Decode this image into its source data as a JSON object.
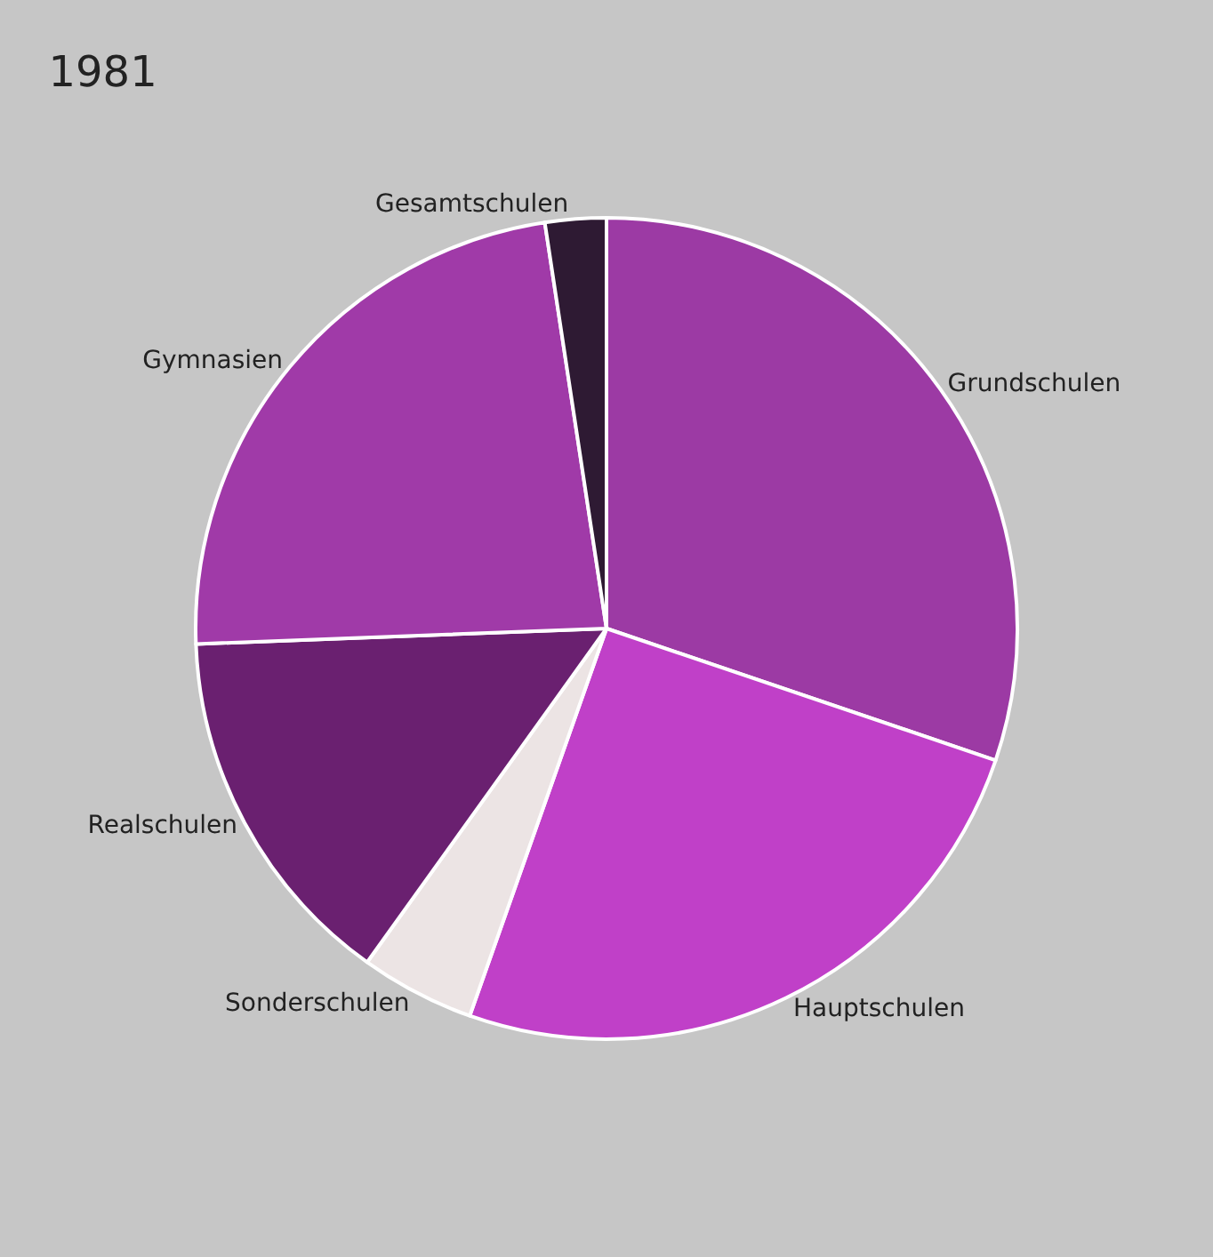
{
  "chart_data": {
    "type": "pie",
    "title": "1981",
    "categories": [
      "Grundschulen",
      "Hauptschulen",
      "Sonderschulen",
      "Realschulen",
      "Gymnasien",
      "Gesamtschulen"
    ],
    "values": [
      30.2,
      25.2,
      4.5,
      14.5,
      23.2,
      2.4
    ],
    "colors": [
      "#9c3aa4",
      "#c040c8",
      "#ece4e4",
      "#6a2070",
      "#a03aa8",
      "#2e1a33"
    ],
    "legend": false
  }
}
